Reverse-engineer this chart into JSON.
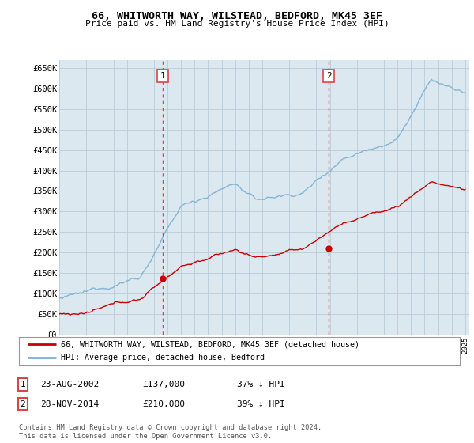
{
  "title": "66, WHITWORTH WAY, WILSTEAD, BEDFORD, MK45 3EF",
  "subtitle": "Price paid vs. HM Land Registry's House Price Index (HPI)",
  "ylabel_ticks": [
    "£0",
    "£50K",
    "£100K",
    "£150K",
    "£200K",
    "£250K",
    "£300K",
    "£350K",
    "£400K",
    "£450K",
    "£500K",
    "£550K",
    "£600K",
    "£650K"
  ],
  "ytick_values": [
    0,
    50000,
    100000,
    150000,
    200000,
    250000,
    300000,
    350000,
    400000,
    450000,
    500000,
    550000,
    600000,
    650000
  ],
  "sale1_year": 2002.64,
  "sale1_price": 137000,
  "sale2_year": 2014.91,
  "sale2_price": 210000,
  "hpi_color": "#7ab0d4",
  "price_color": "#cc0000",
  "vline_color": "#dd4444",
  "plot_bg": "#dce8f0",
  "bg_color": "#ffffff",
  "legend_label_red": "66, WHITWORTH WAY, WILSTEAD, BEDFORD, MK45 3EF (detached house)",
  "legend_label_blue": "HPI: Average price, detached house, Bedford",
  "table_rows": [
    {
      "num": "1",
      "date": "23-AUG-2002",
      "price": "£137,000",
      "hpi": "37% ↓ HPI"
    },
    {
      "num": "2",
      "date": "28-NOV-2014",
      "price": "£210,000",
      "hpi": "39% ↓ HPI"
    }
  ],
  "footnote": "Contains HM Land Registry data © Crown copyright and database right 2024.\nThis data is licensed under the Open Government Licence v3.0."
}
